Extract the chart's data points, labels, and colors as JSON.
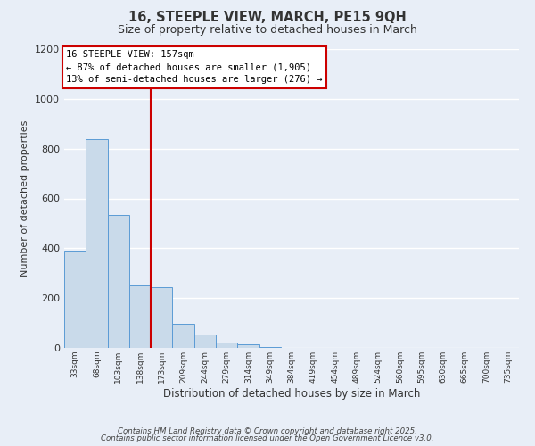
{
  "title": "16, STEEPLE VIEW, MARCH, PE15 9QH",
  "subtitle": "Size of property relative to detached houses in March",
  "bar_labels": [
    "33sqm",
    "68sqm",
    "103sqm",
    "138sqm",
    "173sqm",
    "209sqm",
    "244sqm",
    "279sqm",
    "314sqm",
    "349sqm",
    "384sqm",
    "419sqm",
    "454sqm",
    "489sqm",
    "524sqm",
    "560sqm",
    "595sqm",
    "630sqm",
    "665sqm",
    "700sqm",
    "735sqm"
  ],
  "bar_values": [
    390,
    840,
    535,
    250,
    245,
    98,
    52,
    20,
    13,
    5,
    0,
    0,
    0,
    0,
    0,
    1,
    0,
    0,
    0,
    0,
    0
  ],
  "bar_color": "#c9daea",
  "bar_edge_color": "#5b9bd5",
  "background_color": "#e8eef7",
  "grid_color": "#ffffff",
  "ylabel": "Number of detached properties",
  "xlabel": "Distribution of detached houses by size in March",
  "ylim": [
    0,
    1200
  ],
  "yticks": [
    0,
    200,
    400,
    600,
    800,
    1000,
    1200
  ],
  "red_line_x": 4.0,
  "red_line_label": "16 STEEPLE VIEW: 157sqm",
  "annotation_line1": "← 87% of detached houses are smaller (1,905)",
  "annotation_line2": "13% of semi-detached houses are larger (276) →",
  "annotation_box_color": "#ffffff",
  "annotation_border_color": "#cc0000",
  "footer_line1": "Contains HM Land Registry data © Crown copyright and database right 2025.",
  "footer_line2": "Contains public sector information licensed under the Open Government Licence v3.0."
}
